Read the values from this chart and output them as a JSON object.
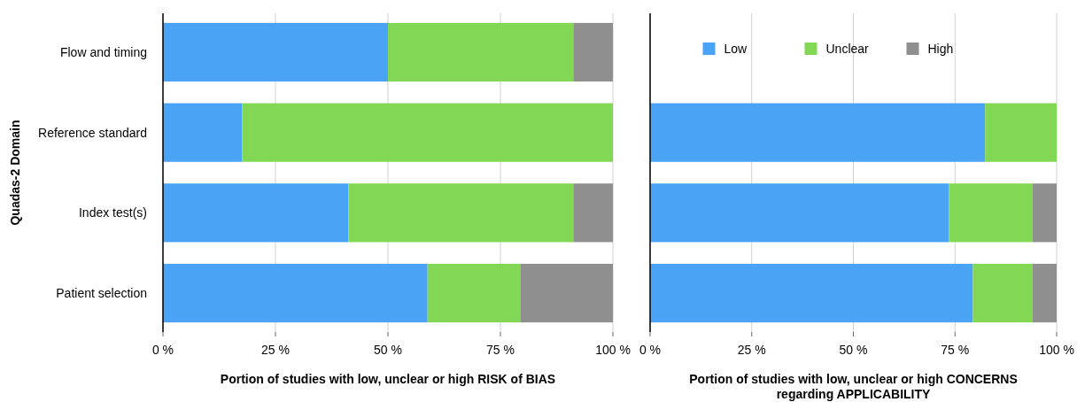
{
  "chart_data": [
    {
      "type": "bar",
      "orientation": "horizontal",
      "stacked": true,
      "ylabel": "Quadas-2 Domain",
      "xlabel": "Portion of studies with low, unclear or high RISK of BIAS",
      "categories": [
        "Flow and timing",
        "Reference standard",
        "Index test(s)",
        "Patient selection"
      ],
      "xlim": [
        0,
        100
      ],
      "xticks": [
        {
          "value": 0,
          "label": "0 %"
        },
        {
          "value": 25,
          "label": "25 %"
        },
        {
          "value": 50,
          "label": "50 %"
        },
        {
          "value": 75,
          "label": "75 %"
        },
        {
          "value": 100,
          "label": "100 %"
        }
      ],
      "grid": "x",
      "legend": false,
      "series": [
        {
          "color": "#4aa3f5",
          "values": [
            50,
            17.6,
            41.2,
            58.8
          ]
        },
        {
          "color": "#82d855",
          "values": [
            41.2,
            82.4,
            50,
            20.6
          ]
        },
        {
          "color": "#8f8f8f",
          "values": [
            8.8,
            0,
            8.8,
            20.6
          ]
        }
      ]
    },
    {
      "type": "bar",
      "orientation": "horizontal",
      "stacked": true,
      "xlabel": "Portion of studies with low, unclear or high CONCERNS regarding APPLICABILITY",
      "categories": [
        null,
        null,
        null,
        null
      ],
      "tick_labels": "x",
      "xlim": [
        0,
        100
      ],
      "xticks": [
        {
          "value": 0,
          "label": "0 %"
        },
        {
          "value": 25,
          "label": "25 %"
        },
        {
          "value": 50,
          "label": "50 %"
        },
        {
          "value": 75,
          "label": "75 %"
        },
        {
          "value": 100,
          "label": "100 %"
        }
      ],
      "grid": "x",
      "legend": "top",
      "series": [
        {
          "name": "Low",
          "color": "#4aa3f5",
          "values": [
            null,
            82.4,
            73.5,
            79.4
          ]
        },
        {
          "name": "Unclear",
          "color": "#82d855",
          "values": [
            null,
            17.6,
            20.6,
            14.7
          ]
        },
        {
          "name": "High",
          "color": "#8f8f8f",
          "values": [
            null,
            0,
            5.9,
            5.9
          ]
        }
      ]
    }
  ]
}
